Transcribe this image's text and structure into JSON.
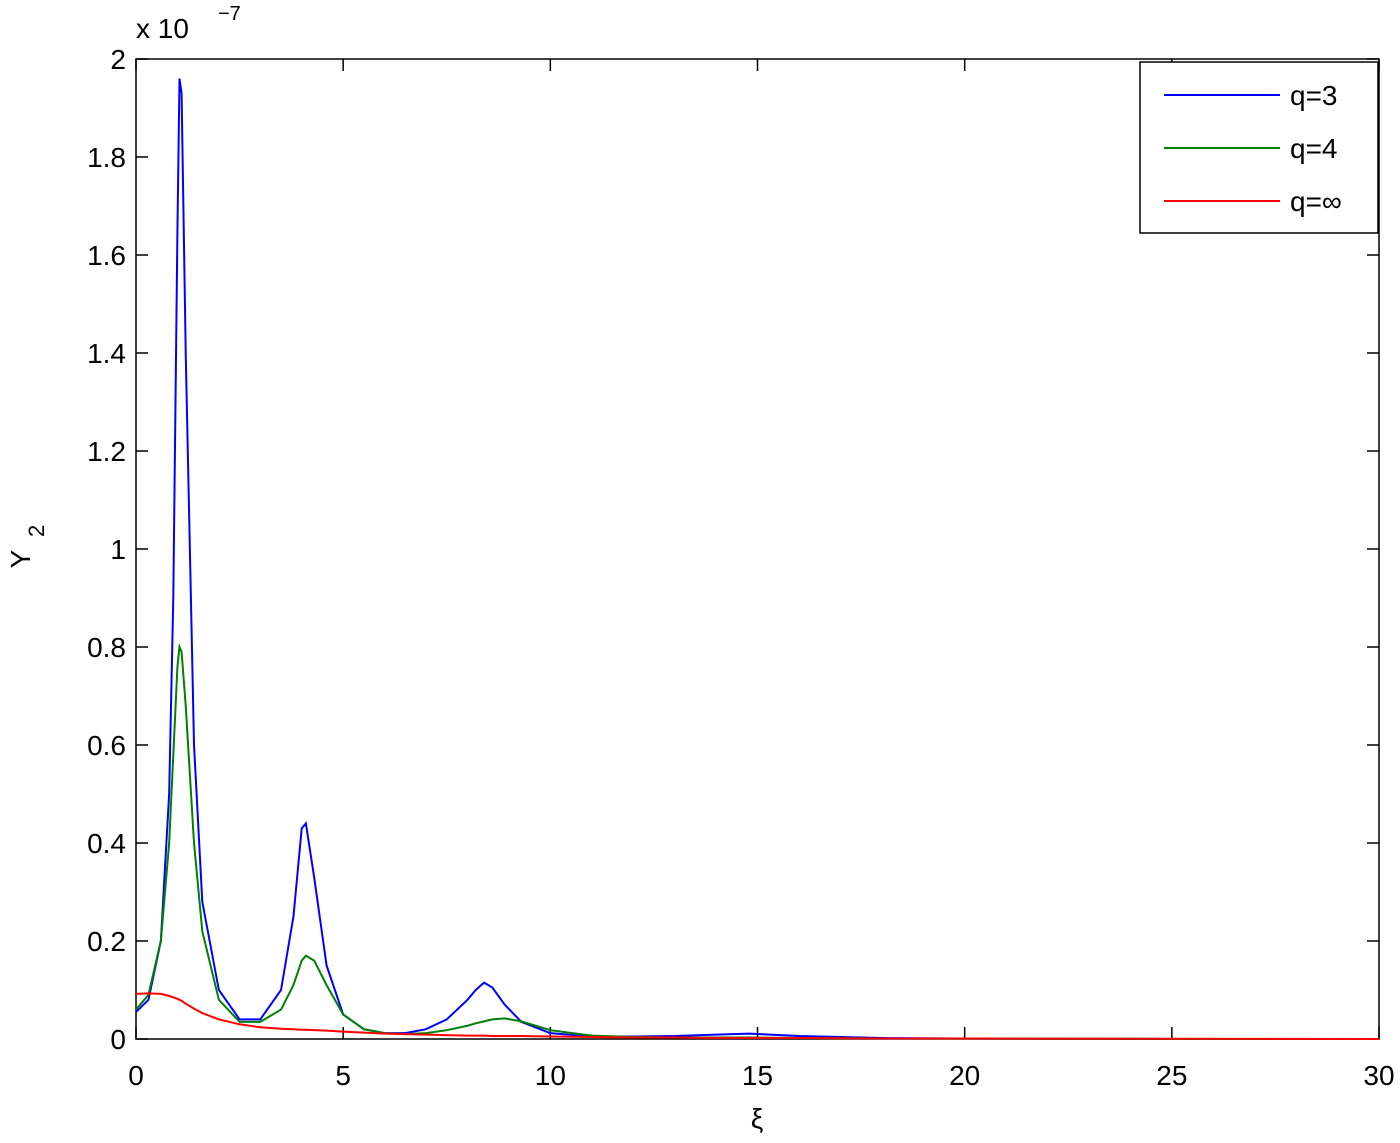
{
  "chart_data": {
    "type": "line",
    "xlabel": "ξ",
    "ylabel": "Y",
    "ylabel_sub": "2",
    "y_multiplier": "x 10",
    "y_multiplier_exp": "−7",
    "x": [
      0,
      0.3,
      0.6,
      0.8,
      0.9,
      1.0,
      1.05,
      1.1,
      1.2,
      1.4,
      1.6,
      2,
      2.5,
      3,
      3.5,
      3.8,
      4.0,
      4.1,
      4.3,
      4.6,
      5,
      5.5,
      6,
      6.5,
      7,
      7.5,
      8,
      8.2,
      8.4,
      8.6,
      8.9,
      9.3,
      10,
      11,
      12,
      13,
      14,
      14.8,
      16,
      18,
      20,
      25,
      30
    ],
    "series": [
      {
        "name": "q=3",
        "color": "#0000ff",
        "values": [
          0.055,
          0.08,
          0.2,
          0.5,
          0.9,
          1.65,
          1.96,
          1.93,
          1.4,
          0.6,
          0.28,
          0.1,
          0.04,
          0.04,
          0.1,
          0.25,
          0.43,
          0.44,
          0.33,
          0.15,
          0.05,
          0.02,
          0.012,
          0.012,
          0.02,
          0.04,
          0.08,
          0.1,
          0.115,
          0.105,
          0.07,
          0.035,
          0.012,
          0.005,
          0.005,
          0.006,
          0.009,
          0.011,
          0.006,
          0.002,
          0.001,
          0,
          0
        ]
      },
      {
        "name": "q=4",
        "color": "#008000",
        "values": [
          0.06,
          0.09,
          0.2,
          0.4,
          0.58,
          0.76,
          0.8,
          0.79,
          0.68,
          0.4,
          0.22,
          0.08,
          0.035,
          0.035,
          0.06,
          0.11,
          0.16,
          0.17,
          0.16,
          0.11,
          0.05,
          0.02,
          0.012,
          0.01,
          0.012,
          0.018,
          0.027,
          0.032,
          0.036,
          0.04,
          0.042,
          0.036,
          0.018,
          0.007,
          0.004,
          0.003,
          0.003,
          0.003,
          0.002,
          0.001,
          0.001,
          0,
          0
        ]
      },
      {
        "name": "q=∞",
        "color": "#ff0000",
        "values": [
          0.092,
          0.093,
          0.092,
          0.088,
          0.085,
          0.082,
          0.08,
          0.078,
          0.072,
          0.062,
          0.053,
          0.04,
          0.03,
          0.024,
          0.021,
          0.02,
          0.019,
          0.019,
          0.018,
          0.017,
          0.015,
          0.013,
          0.011,
          0.01,
          0.009,
          0.008,
          0.007,
          0.007,
          0.007,
          0.006,
          0.006,
          0.006,
          0.005,
          0.004,
          0.003,
          0.003,
          0.002,
          0.002,
          0.002,
          0.001,
          0.001,
          0.0005,
          0
        ]
      }
    ],
    "xlim": [
      0,
      30
    ],
    "xticks": [
      0,
      5,
      10,
      15,
      20,
      25,
      30
    ],
    "ylim": [
      0,
      2
    ],
    "yticks": [
      0,
      0.2,
      0.4,
      0.6,
      0.8,
      1,
      1.2,
      1.4,
      1.6,
      1.8,
      2
    ],
    "grid": false,
    "legend": "upper-right"
  }
}
